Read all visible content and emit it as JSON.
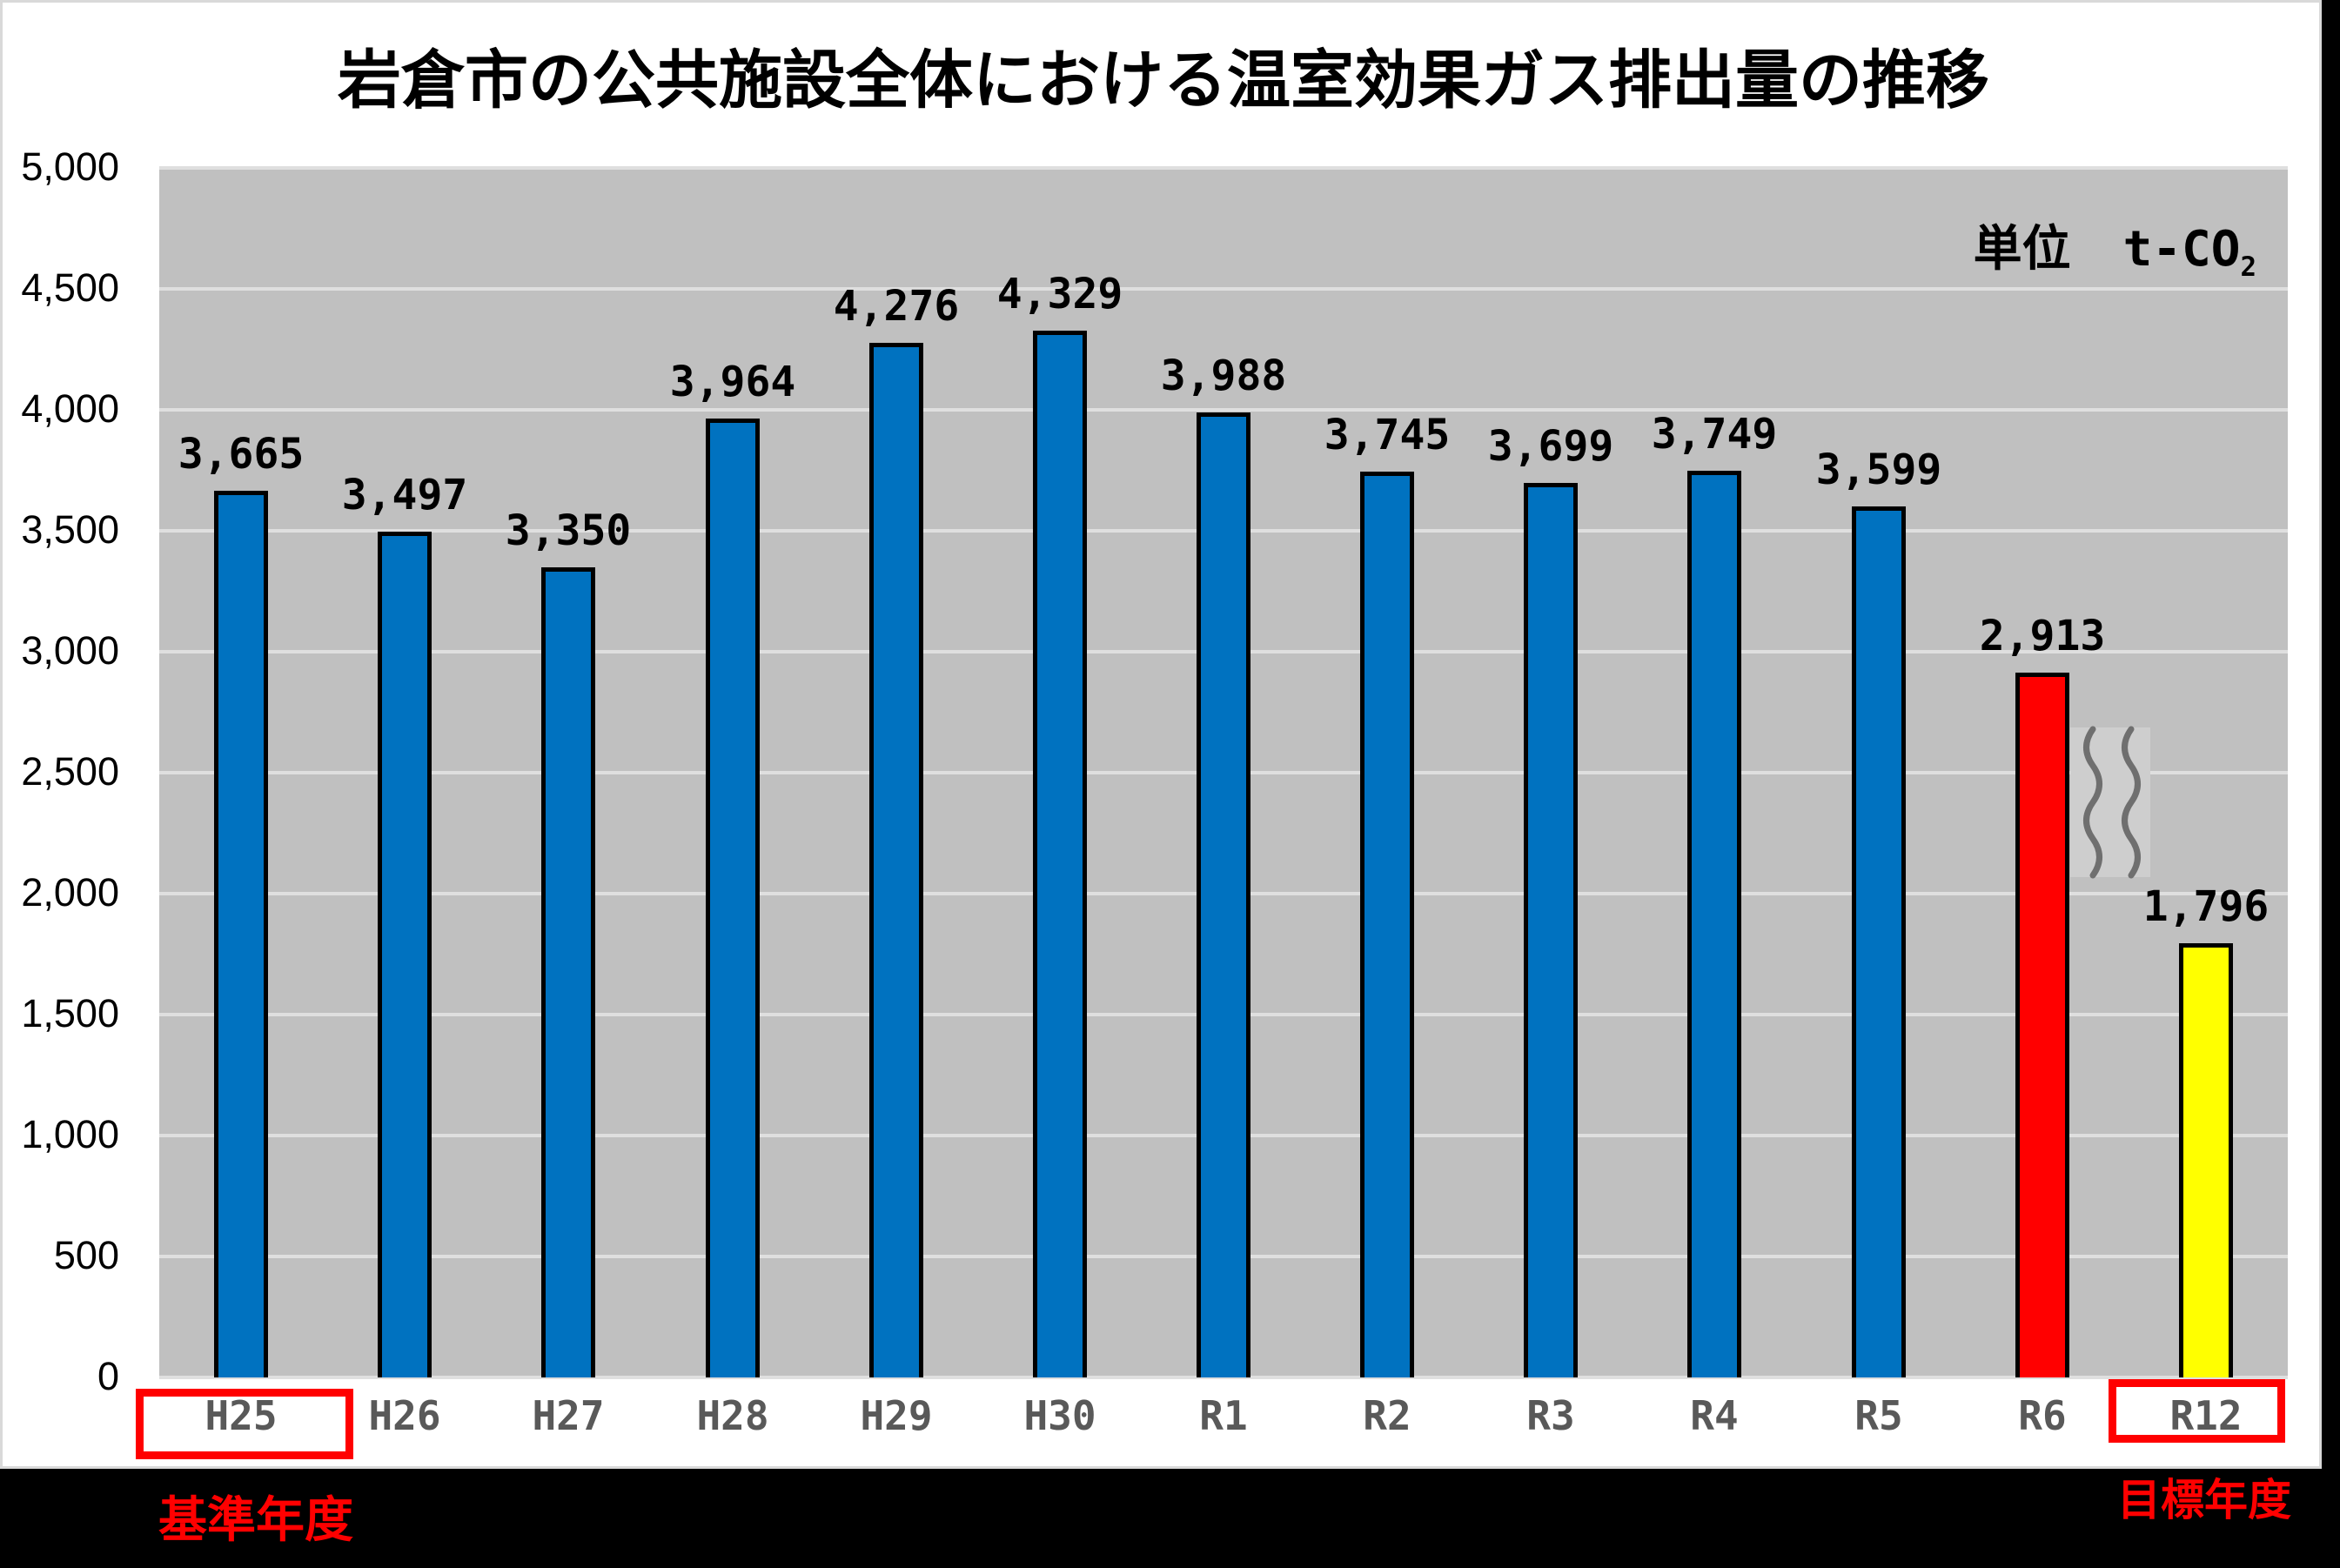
{
  "title": "岩倉市の公共施設全体における温室効果ガス排出量の推移",
  "unit": {
    "word": "単位",
    "value": "t-CO",
    "subscript": "2"
  },
  "annotations": {
    "base_year": "基準年度",
    "target_year": "目標年度"
  },
  "colors": {
    "bar_blue": "#0072c0",
    "bar_red": "#ff0000",
    "bar_yellow": "#ffff00",
    "bar_border": "#000000",
    "plot_background": "#c0c0c0",
    "gridline": "#dfdfdf",
    "xtick_text": "#595959",
    "annotation_red": "#ff0000",
    "page_background": "#000000"
  },
  "chart_data": {
    "type": "bar",
    "title": "岩倉市の公共施設全体における温室効果ガス排出量の推移",
    "categories": [
      "H25",
      "H26",
      "H27",
      "H28",
      "H29",
      "H30",
      "R1",
      "R2",
      "R3",
      "R4",
      "R5",
      "R6",
      "R12"
    ],
    "values": [
      3665,
      3497,
      3350,
      3964,
      4276,
      4329,
      3988,
      3745,
      3699,
      3749,
      3599,
      2913,
      1796
    ],
    "value_labels": [
      "3,665",
      "3,497",
      "3,350",
      "3,964",
      "4,276",
      "4,329",
      "3,988",
      "3,745",
      "3,699",
      "3,749",
      "3,599",
      "2,913",
      "1,796"
    ],
    "bar_colors": [
      "#0072c0",
      "#0072c0",
      "#0072c0",
      "#0072c0",
      "#0072c0",
      "#0072c0",
      "#0072c0",
      "#0072c0",
      "#0072c0",
      "#0072c0",
      "#0072c0",
      "#ff0000",
      "#ffff00"
    ],
    "highlighted_categories": [
      "H25",
      "R12"
    ],
    "axis_break_between": [
      "R6",
      "R12"
    ],
    "xlabel": "",
    "ylabel": "",
    "ylim": [
      0,
      5000
    ],
    "ytick_step": 500,
    "ytick_labels_top_down": [
      "5,000",
      "4,500",
      "4,000",
      "3,500",
      "3,000",
      "2,500",
      "2,000",
      "1,500",
      "1,000",
      "500",
      "0"
    ],
    "grid": true,
    "legend": false
  }
}
